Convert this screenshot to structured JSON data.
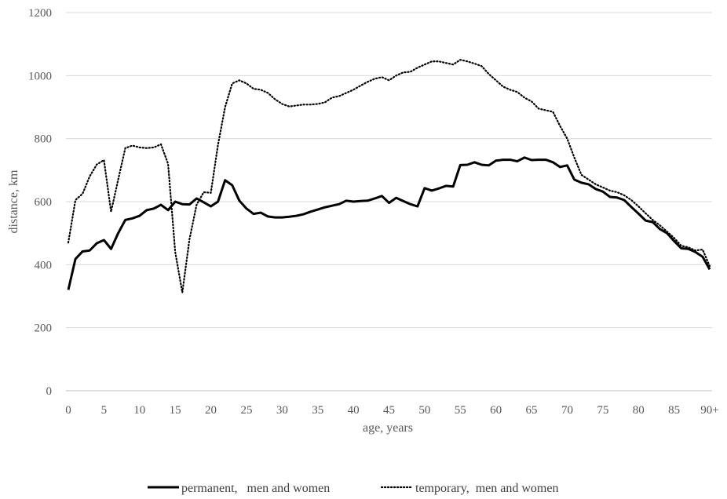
{
  "chart_data": {
    "type": "line",
    "xlabel": "age, years",
    "ylabel": "distance, km",
    "ylim": [
      0,
      1200
    ],
    "yticks": [
      0,
      200,
      400,
      600,
      800,
      1000,
      1200
    ],
    "xlim": [
      0,
      90
    ],
    "x_tick_values": [
      0,
      5,
      10,
      15,
      20,
      25,
      30,
      35,
      40,
      45,
      50,
      55,
      60,
      65,
      70,
      75,
      80,
      85,
      90
    ],
    "x_tick_labels": [
      "0",
      "5",
      "10",
      "15",
      "20",
      "25",
      "30",
      "35",
      "40",
      "45",
      "50",
      "55",
      "60",
      "65",
      "70",
      "75",
      "80",
      "85",
      "90+"
    ],
    "grid": "horizontal",
    "legend_position": "bottom",
    "x": [
      0,
      1,
      2,
      3,
      4,
      5,
      6,
      7,
      8,
      9,
      10,
      11,
      12,
      13,
      14,
      15,
      16,
      17,
      18,
      19,
      20,
      21,
      22,
      23,
      24,
      25,
      26,
      27,
      28,
      29,
      30,
      31,
      32,
      33,
      34,
      35,
      36,
      37,
      38,
      39,
      40,
      41,
      42,
      43,
      44,
      45,
      46,
      47,
      48,
      49,
      50,
      51,
      52,
      53,
      54,
      55,
      56,
      57,
      58,
      59,
      60,
      61,
      62,
      63,
      64,
      65,
      66,
      67,
      68,
      69,
      70,
      71,
      72,
      73,
      74,
      75,
      76,
      77,
      78,
      79,
      80,
      81,
      82,
      83,
      84,
      85,
      86,
      87,
      88,
      89,
      90
    ],
    "series": [
      {
        "name": "permanent,   men and women",
        "style": "solid",
        "color": "#000000",
        "values": [
          320,
          418,
          442,
          445,
          468,
          478,
          450,
          500,
          542,
          547,
          555,
          573,
          578,
          590,
          573,
          600,
          592,
          591,
          610,
          598,
          585,
          600,
          668,
          652,
          603,
          578,
          561,
          565,
          553,
          550,
          550,
          552,
          555,
          560,
          568,
          575,
          582,
          587,
          592,
          603,
          600,
          602,
          603,
          610,
          618,
          596,
          612,
          602,
          592,
          585,
          643,
          635,
          642,
          650,
          648,
          716,
          717,
          725,
          717,
          715,
          730,
          733,
          733,
          728,
          740,
          732,
          733,
          733,
          725,
          710,
          715,
          670,
          660,
          655,
          640,
          632,
          615,
          613,
          605,
          583,
          562,
          540,
          535,
          513,
          500,
          475,
          452,
          450,
          440,
          425,
          385
        ]
      },
      {
        "name": "temporary,  men and women",
        "style": "dotted",
        "color": "#000000",
        "values": [
          470,
          605,
          625,
          680,
          718,
          732,
          568,
          670,
          770,
          778,
          772,
          770,
          772,
          782,
          720,
          440,
          312,
          480,
          590,
          630,
          628,
          780,
          900,
          975,
          985,
          975,
          958,
          955,
          945,
          925,
          910,
          902,
          905,
          908,
          908,
          910,
          915,
          930,
          935,
          945,
          955,
          968,
          980,
          990,
          995,
          985,
          1000,
          1010,
          1012,
          1025,
          1035,
          1045,
          1045,
          1040,
          1035,
          1050,
          1045,
          1038,
          1030,
          1005,
          985,
          965,
          955,
          948,
          930,
          918,
          895,
          890,
          885,
          840,
          800,
          740,
          685,
          670,
          655,
          645,
          635,
          630,
          620,
          605,
          585,
          563,
          542,
          525,
          505,
          485,
          460,
          455,
          445,
          448,
          395
        ]
      }
    ]
  }
}
